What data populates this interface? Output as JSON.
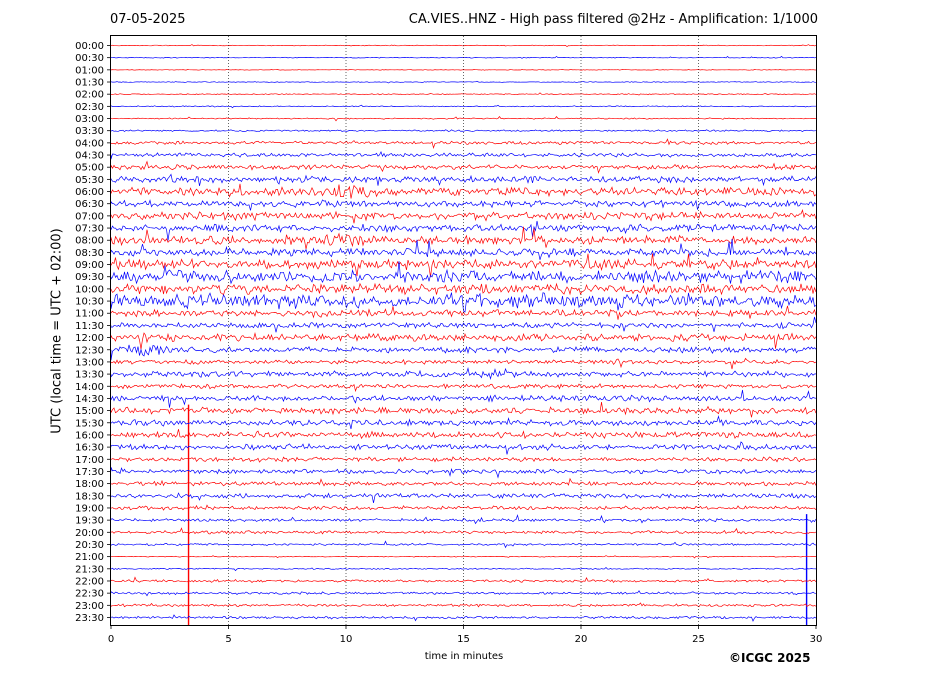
{
  "header": {
    "date": "07-05-2025",
    "title": "CA.VIES..HNZ - High pass filtered @2Hz - Amplification: 1/1000"
  },
  "footer": {
    "copyright": "©ICGC 2025"
  },
  "chart_data": {
    "type": "line",
    "title": "CA.VIES..HNZ - High pass filtered @2Hz - Amplification: 1/1000",
    "xlabel": "time in minutes",
    "ylabel": "UTC (local time = UTC + 02:00)",
    "xlim": [
      0,
      30
    ],
    "xticks": [
      0,
      5,
      10,
      15,
      20,
      25,
      30
    ],
    "grid": "vertical dotted at 5-minute ticks",
    "row_labels": [
      "00:00",
      "00:30",
      "01:00",
      "01:30",
      "02:00",
      "02:30",
      "03:00",
      "03:30",
      "04:00",
      "04:30",
      "05:00",
      "05:30",
      "06:00",
      "06:30",
      "07:00",
      "07:30",
      "08:00",
      "08:30",
      "09:00",
      "09:30",
      "10:00",
      "10:30",
      "11:00",
      "11:30",
      "12:00",
      "12:30",
      "13:00",
      "13:30",
      "14:00",
      "14:30",
      "15:00",
      "15:30",
      "16:00",
      "16:30",
      "17:00",
      "17:30",
      "18:00",
      "18:30",
      "19:00",
      "19:30",
      "20:00",
      "20:30",
      "21:00",
      "21:30",
      "22:00",
      "22:30",
      "23:00",
      "23:30"
    ],
    "trace_colors": [
      "#ff0000",
      "#0000ff"
    ],
    "noise_level": [
      0.4,
      0.4,
      0.3,
      0.4,
      0.5,
      0.5,
      0.6,
      0.8,
      1.5,
      1.8,
      2.2,
      3.0,
      4.0,
      3.2,
      3.6,
      3.4,
      4.0,
      3.8,
      4.6,
      6.0,
      4.8,
      6.5,
      3.2,
      2.6,
      3.5,
      2.8,
      2.0,
      2.6,
      2.2,
      2.8,
      3.0,
      2.8,
      3.0,
      2.8,
      2.0,
      2.0,
      2.0,
      2.2,
      1.8,
      1.4,
      1.4,
      1.0,
      0.4,
      0.6,
      1.2,
      1.2,
      1.2,
      1.2
    ],
    "events": [
      {
        "row": 30,
        "x": 3.3,
        "type": "spike"
      },
      {
        "row": 39,
        "x": 29.6,
        "type": "spike"
      },
      {
        "row": 27,
        "x": 16.8,
        "type": "burst"
      },
      {
        "row": 25,
        "x": 1.5,
        "type": "burst"
      },
      {
        "row": 16,
        "x": 9.8,
        "type": "burst"
      },
      {
        "row": 12,
        "x": 10.0,
        "type": "burst"
      },
      {
        "row": 21,
        "x": 15.0,
        "type": "burst"
      }
    ]
  }
}
